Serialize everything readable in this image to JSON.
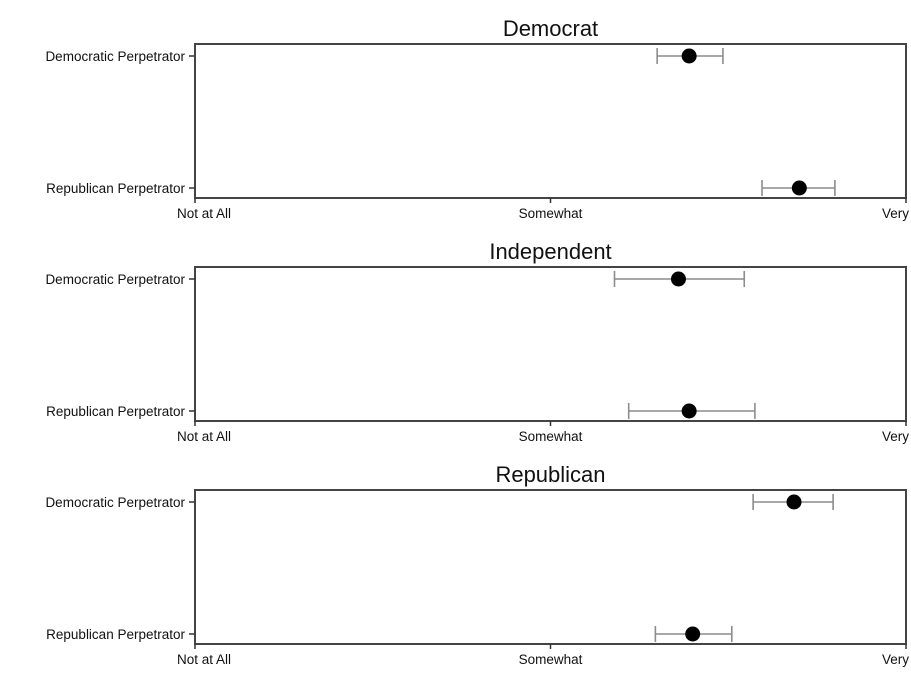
{
  "chart_data": [
    {
      "type": "scatter",
      "title": "Democrat",
      "categories": [
        "Democratic Perpetrator",
        "Republican Perpetrator"
      ],
      "x_tick_labels": [
        "Not at All",
        "Somewhat",
        "Very"
      ],
      "x_ticks": [
        1,
        3,
        5
      ],
      "xlim": [
        1,
        5
      ],
      "points": [
        {
          "category": "Democratic Perpetrator",
          "value": 3.78,
          "ci": [
            3.6,
            3.97
          ]
        },
        {
          "category": "Republican Perpetrator",
          "value": 4.4,
          "ci": [
            4.19,
            4.6
          ]
        }
      ]
    },
    {
      "type": "scatter",
      "title": "Independent",
      "categories": [
        "Democratic Perpetrator",
        "Republican Perpetrator"
      ],
      "x_tick_labels": [
        "Not at All",
        "Somewhat",
        "Very"
      ],
      "x_ticks": [
        1,
        3,
        5
      ],
      "xlim": [
        1,
        5
      ],
      "points": [
        {
          "category": "Democratic Perpetrator",
          "value": 3.72,
          "ci": [
            3.36,
            4.09
          ]
        },
        {
          "category": "Republican Perpetrator",
          "value": 3.78,
          "ci": [
            3.44,
            4.15
          ]
        }
      ]
    },
    {
      "type": "scatter",
      "title": "Republican",
      "categories": [
        "Democratic Perpetrator",
        "Republican Perpetrator"
      ],
      "x_tick_labels": [
        "Not at All",
        "Somewhat",
        "Very"
      ],
      "x_ticks": [
        1,
        3,
        5
      ],
      "xlim": [
        1,
        5
      ],
      "points": [
        {
          "category": "Democratic Perpetrator",
          "value": 4.37,
          "ci": [
            4.14,
            4.59
          ]
        },
        {
          "category": "Republican Perpetrator",
          "value": 3.8,
          "ci": [
            3.59,
            4.02
          ]
        }
      ]
    }
  ]
}
